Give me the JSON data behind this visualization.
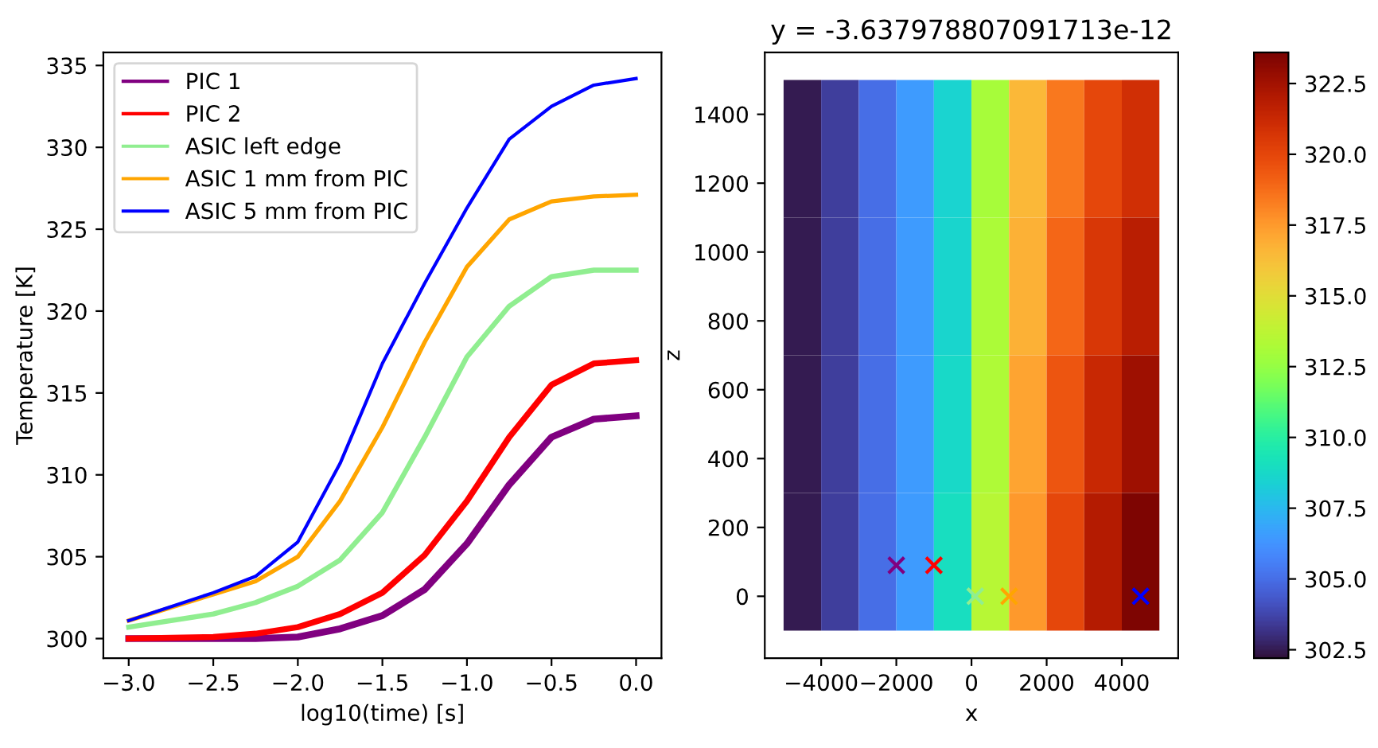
{
  "chart_data": [
    {
      "type": "line",
      "xlabel": "log10(time) [s]",
      "ylabel": "Temperature [K]",
      "x": [
        -3.0,
        -2.5,
        -2.25,
        -2.0,
        -1.75,
        -1.5,
        -1.25,
        -1.0,
        -0.75,
        -0.5,
        -0.25,
        0.0
      ],
      "series": [
        {
          "name": "PIC 1",
          "color": "#800080",
          "values": [
            300.0,
            300.0,
            300.0,
            300.1,
            300.6,
            301.4,
            303.0,
            305.8,
            309.4,
            312.3,
            313.4,
            313.6
          ]
        },
        {
          "name": "PIC 2",
          "color": "#ff0000",
          "values": [
            300.0,
            300.1,
            300.3,
            300.7,
            301.5,
            302.8,
            305.1,
            308.4,
            312.3,
            315.5,
            316.8,
            317.0
          ]
        },
        {
          "name": "ASIC left edge",
          "color": "#90ee90",
          "values": [
            300.7,
            301.5,
            302.2,
            303.2,
            304.8,
            307.7,
            312.3,
            317.2,
            320.3,
            322.1,
            322.5,
            322.5
          ]
        },
        {
          "name": "ASIC 1 mm from PIC",
          "color": "#ffa500",
          "values": [
            301.1,
            302.7,
            303.5,
            305.0,
            308.4,
            312.9,
            318.1,
            322.7,
            325.6,
            326.7,
            327.0,
            327.1
          ]
        },
        {
          "name": "ASIC 5 mm from PIC",
          "color": "#0000ff",
          "values": [
            301.1,
            302.8,
            303.8,
            305.9,
            310.7,
            316.8,
            321.7,
            326.3,
            330.5,
            332.5,
            333.8,
            334.2
          ]
        }
      ],
      "xlim": [
        -3.15,
        0.15
      ],
      "ylim": [
        298.8,
        335.8
      ],
      "xticks": [
        {
          "value": -3.0,
          "label": "−3.0"
        },
        {
          "value": -2.5,
          "label": "−2.5"
        },
        {
          "value": -2.0,
          "label": "−2.0"
        },
        {
          "value": -1.5,
          "label": "−1.5"
        },
        {
          "value": -1.0,
          "label": "−1.0"
        },
        {
          "value": -0.5,
          "label": "−0.5"
        },
        {
          "value": 0.0,
          "label": "0.0"
        }
      ],
      "yticks": [
        300,
        305,
        310,
        315,
        320,
        325,
        330,
        335
      ],
      "legend": "top left",
      "grid": false,
      "marker": "none",
      "line_style": "solid"
    },
    {
      "type": "heatmap",
      "title": "y = -3.637978807091713e-12",
      "xlabel": "x",
      "ylabel": "z",
      "x": [
        -4500,
        -3500,
        -2500,
        -1500,
        -500,
        500,
        1500,
        2500,
        3500,
        4500
      ],
      "y": [
        1300,
        900,
        500,
        100
      ],
      "cells": [
        [
          302.5,
          303.5,
          305.0,
          306.5,
          308.5,
          313.0,
          316.5,
          318.5,
          320.0,
          321.0
        ],
        [
          302.5,
          303.5,
          305.0,
          306.5,
          308.6,
          313.2,
          316.8,
          319.0,
          320.6,
          321.8
        ],
        [
          302.5,
          303.5,
          305.0,
          306.5,
          308.8,
          313.3,
          317.2,
          319.5,
          321.3,
          322.6
        ],
        [
          302.5,
          303.5,
          305.0,
          306.5,
          309.0,
          313.5,
          317.5,
          320.0,
          322.0,
          323.5
        ]
      ],
      "clim": [
        302.2,
        323.6
      ],
      "cticks": [
        302.5,
        {
          "value": 305,
          "label": "305.0"
        },
        307.5,
        {
          "value": 310,
          "label": "310.0"
        },
        312.5,
        {
          "value": 315,
          "label": "315.0"
        },
        317.5,
        {
          "value": 320,
          "label": "320.0"
        },
        322.5
      ],
      "series": [
        {
          "type": "scatter",
          "marker": "cross",
          "x": [
            -2000
          ],
          "values": [
            90
          ],
          "color": "#800080"
        },
        {
          "type": "scatter",
          "marker": "cross",
          "x": [
            -1000
          ],
          "values": [
            90
          ],
          "color": "#ff0000"
        },
        {
          "type": "scatter",
          "marker": "cross",
          "x": [
            100
          ],
          "values": [
            0
          ],
          "color": "#90ee90"
        },
        {
          "type": "scatter",
          "marker": "cross",
          "x": [
            1000
          ],
          "values": [
            0
          ],
          "color": "#ffa500"
        },
        {
          "type": "scatter",
          "marker": "cross",
          "x": [
            4500
          ],
          "values": [
            0
          ],
          "color": "#0000ff"
        }
      ],
      "xlim": [
        -5500,
        5500
      ],
      "ylim": [
        -180,
        1580
      ],
      "xticks": [
        {
          "value": -4000,
          "label": "−4000"
        },
        {
          "value": -2000,
          "label": "−2000"
        },
        0,
        2000,
        4000
      ],
      "yticks": [
        0,
        200,
        400,
        600,
        800,
        1000,
        1200,
        1400
      ],
      "grid": false
    }
  ]
}
